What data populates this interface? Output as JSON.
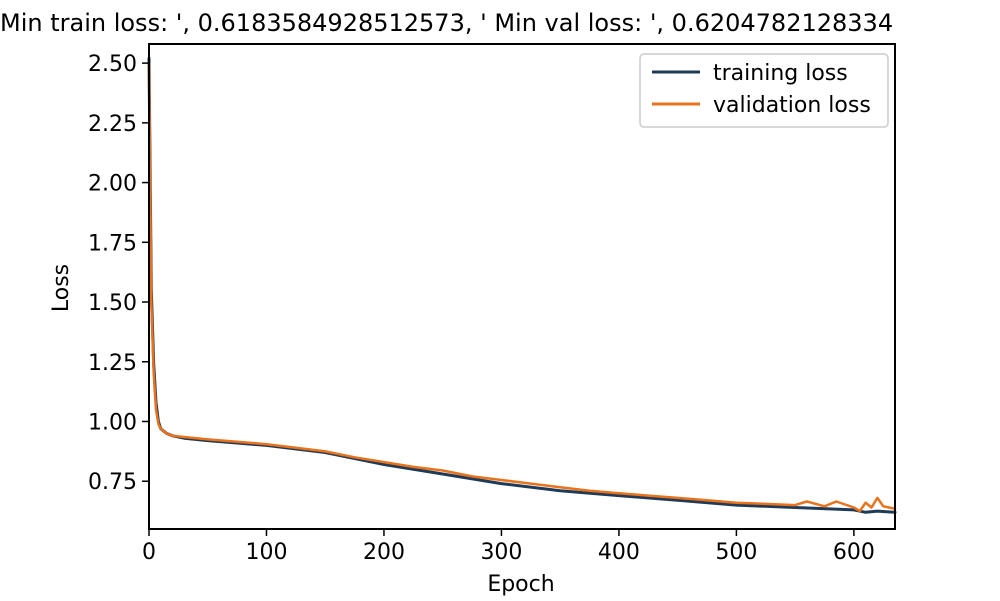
{
  "chart_data": {
    "type": "line",
    "title": "Min train loss: ', 0.6183584928512573, ' Min val loss: ', 0.6204782128334",
    "xlabel": "Epoch",
    "ylabel": "Loss",
    "xlim": [
      0,
      635
    ],
    "ylim": [
      0.55,
      2.58
    ],
    "xticks": [
      0,
      100,
      200,
      300,
      400,
      500,
      600
    ],
    "yticks": [
      0.75,
      1.0,
      1.25,
      1.5,
      1.75,
      2.0,
      2.25,
      2.5
    ],
    "xtick_labels": [
      "0",
      "100",
      "200",
      "300",
      "400",
      "500",
      "600"
    ],
    "ytick_labels": [
      "0.75",
      "1.00",
      "1.25",
      "1.50",
      "1.75",
      "2.00",
      "2.25",
      "2.50"
    ],
    "grid": false,
    "legend_position": "top-right",
    "series": [
      {
        "name": "training loss",
        "color": "#1f3b57",
        "x": [
          0,
          2,
          4,
          6,
          8,
          10,
          15,
          20,
          30,
          50,
          75,
          100,
          150,
          200,
          250,
          300,
          350,
          400,
          450,
          500,
          550,
          600,
          610,
          620,
          635
        ],
        "y": [
          2.52,
          1.55,
          1.24,
          1.08,
          1.0,
          0.97,
          0.95,
          0.94,
          0.93,
          0.92,
          0.91,
          0.9,
          0.87,
          0.82,
          0.78,
          0.74,
          0.71,
          0.69,
          0.67,
          0.65,
          0.64,
          0.63,
          0.62,
          0.625,
          0.62
        ]
      },
      {
        "name": "validation loss",
        "color": "#e8731c",
        "x": [
          0,
          2,
          4,
          6,
          8,
          10,
          15,
          20,
          30,
          50,
          75,
          100,
          125,
          150,
          175,
          200,
          225,
          250,
          275,
          300,
          325,
          350,
          375,
          400,
          425,
          450,
          475,
          500,
          525,
          550,
          560,
          575,
          585,
          600,
          605,
          610,
          615,
          620,
          625,
          635
        ],
        "y": [
          2.5,
          1.5,
          1.2,
          1.05,
          0.99,
          0.97,
          0.95,
          0.94,
          0.935,
          0.925,
          0.915,
          0.905,
          0.89,
          0.875,
          0.85,
          0.83,
          0.81,
          0.795,
          0.77,
          0.755,
          0.74,
          0.725,
          0.71,
          0.7,
          0.69,
          0.68,
          0.67,
          0.66,
          0.655,
          0.65,
          0.665,
          0.645,
          0.665,
          0.64,
          0.625,
          0.66,
          0.64,
          0.68,
          0.645,
          0.635
        ]
      }
    ]
  }
}
